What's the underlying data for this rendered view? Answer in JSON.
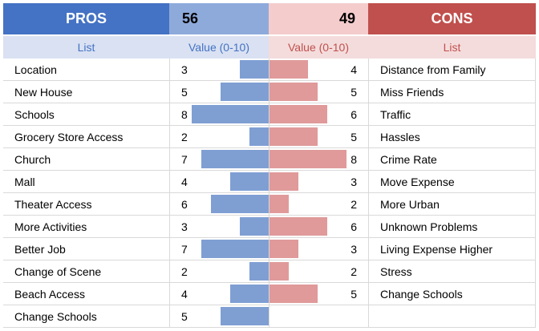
{
  "header": {
    "pros_title": "PROS",
    "pros_total": "56",
    "cons_total": "49",
    "cons_title": "CONS"
  },
  "subheader": {
    "pros_list": "List",
    "pros_value": "Value (0-10)",
    "cons_value": "Value (0-10)",
    "cons_list": "List"
  },
  "value_scale_max": 10,
  "colors": {
    "pros_header": "#4472c4",
    "pros_score_bg": "#8eaadb",
    "pros_bar": "#7f9fd3",
    "cons_header": "#c0504d",
    "cons_score_bg": "#f4cccc",
    "cons_bar": "#e09a9a"
  },
  "rows": [
    {
      "pro": "Location",
      "pro_value": 3,
      "con": "Distance from Family",
      "con_value": 4
    },
    {
      "pro": "New House",
      "pro_value": 5,
      "con": "Miss Friends",
      "con_value": 5
    },
    {
      "pro": "Schools",
      "pro_value": 8,
      "con": "Traffic",
      "con_value": 6
    },
    {
      "pro": "Grocery Store Access",
      "pro_value": 2,
      "con": "Hassles",
      "con_value": 5
    },
    {
      "pro": "Church",
      "pro_value": 7,
      "con": "Crime Rate",
      "con_value": 8
    },
    {
      "pro": "Mall",
      "pro_value": 4,
      "con": "Move Expense",
      "con_value": 3
    },
    {
      "pro": "Theater Access",
      "pro_value": 6,
      "con": "More Urban",
      "con_value": 2
    },
    {
      "pro": "More Activities",
      "pro_value": 3,
      "con": "Unknown Problems",
      "con_value": 6
    },
    {
      "pro": "Better Job",
      "pro_value": 7,
      "con": "Living Expense Higher",
      "con_value": 3
    },
    {
      "pro": "Change of Scene",
      "pro_value": 2,
      "con": "Stress",
      "con_value": 2
    },
    {
      "pro": "Beach Access",
      "pro_value": 4,
      "con": "Change Schools",
      "con_value": 5
    },
    {
      "pro": "Change Schools",
      "pro_value": 5,
      "con": "",
      "con_value": null
    }
  ]
}
